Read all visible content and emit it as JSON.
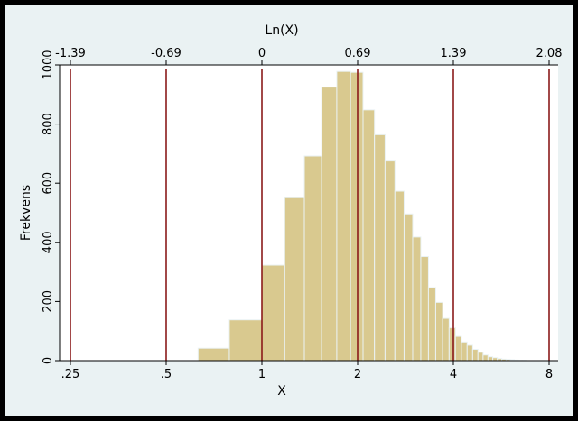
{
  "chart_data": {
    "type": "bar",
    "title": "",
    "xlabel": "X",
    "x2label": "Ln(X)",
    "ylabel": "Frekvens",
    "x_scale": "log",
    "xlim": [
      0.25,
      8
    ],
    "ylim": [
      0,
      1000
    ],
    "x_ticks": [
      {
        "value": 0.25,
        "label": ".25"
      },
      {
        "value": 0.5,
        "label": ".5"
      },
      {
        "value": 1,
        "label": "1"
      },
      {
        "value": 2,
        "label": "2"
      },
      {
        "value": 4,
        "label": "4"
      },
      {
        "value": 8,
        "label": "8"
      }
    ],
    "x2_ticks": [
      {
        "value": 0.25,
        "label": "-1.39"
      },
      {
        "value": 0.5,
        "label": "-0.69"
      },
      {
        "value": 1,
        "label": "0"
      },
      {
        "value": 2,
        "label": "0.69"
      },
      {
        "value": 4,
        "label": "1.39"
      },
      {
        "value": 8,
        "label": "2.08"
      }
    ],
    "y_ticks": [
      {
        "value": 0,
        "label": "0"
      },
      {
        "value": 200,
        "label": "200"
      },
      {
        "value": 400,
        "label": "400"
      },
      {
        "value": 600,
        "label": "600"
      },
      {
        "value": 800,
        "label": "800"
      },
      {
        "value": 1000,
        "label": "1000"
      }
    ],
    "reference_lines_x": [
      0.25,
      0.5,
      1,
      2,
      4,
      8
    ],
    "bins": [
      {
        "x0": 0.63,
        "x1": 0.79,
        "value": 42
      },
      {
        "x0": 0.79,
        "x1": 1.0,
        "value": 138
      },
      {
        "x0": 1.0,
        "x1": 1.18,
        "value": 323
      },
      {
        "x0": 1.18,
        "x1": 1.36,
        "value": 551
      },
      {
        "x0": 1.36,
        "x1": 1.54,
        "value": 692
      },
      {
        "x0": 1.54,
        "x1": 1.72,
        "value": 925
      },
      {
        "x0": 1.72,
        "x1": 1.9,
        "value": 978
      },
      {
        "x0": 1.9,
        "x1": 2.08,
        "value": 975
      },
      {
        "x0": 2.08,
        "x1": 2.26,
        "value": 848
      },
      {
        "x0": 2.26,
        "x1": 2.44,
        "value": 764
      },
      {
        "x0": 2.44,
        "x1": 2.62,
        "value": 675
      },
      {
        "x0": 2.62,
        "x1": 2.8,
        "value": 573
      },
      {
        "x0": 2.8,
        "x1": 2.98,
        "value": 496
      },
      {
        "x0": 2.98,
        "x1": 3.16,
        "value": 418
      },
      {
        "x0": 3.16,
        "x1": 3.34,
        "value": 352
      },
      {
        "x0": 3.34,
        "x1": 3.52,
        "value": 247
      },
      {
        "x0": 3.52,
        "x1": 3.7,
        "value": 197
      },
      {
        "x0": 3.7,
        "x1": 3.88,
        "value": 143
      },
      {
        "x0": 3.88,
        "x1": 4.06,
        "value": 111
      },
      {
        "x0": 4.06,
        "x1": 4.24,
        "value": 82
      },
      {
        "x0": 4.24,
        "x1": 4.42,
        "value": 63
      },
      {
        "x0": 4.42,
        "x1": 4.6,
        "value": 52
      },
      {
        "x0": 4.6,
        "x1": 4.78,
        "value": 38
      },
      {
        "x0": 4.78,
        "x1": 4.96,
        "value": 28
      },
      {
        "x0": 4.96,
        "x1": 5.14,
        "value": 19
      },
      {
        "x0": 5.14,
        "x1": 5.32,
        "value": 13
      },
      {
        "x0": 5.32,
        "x1": 5.5,
        "value": 10
      },
      {
        "x0": 5.5,
        "x1": 5.68,
        "value": 7
      },
      {
        "x0": 5.68,
        "x1": 5.86,
        "value": 5
      },
      {
        "x0": 5.86,
        "x1": 6.04,
        "value": 4
      },
      {
        "x0": 6.04,
        "x1": 6.22,
        "value": 3
      },
      {
        "x0": 6.22,
        "x1": 6.4,
        "value": 2
      },
      {
        "x0": 6.4,
        "x1": 6.58,
        "value": 1
      },
      {
        "x0": 6.58,
        "x1": 6.76,
        "value": 1
      }
    ],
    "colors": {
      "bar_fill": "#d9c98f",
      "bar_edge": "#eaf2f3",
      "reference_line": "#8b1a1a",
      "plot_background": "#ffffff",
      "outer_background": "#eaf2f3",
      "border": "#000000"
    }
  }
}
